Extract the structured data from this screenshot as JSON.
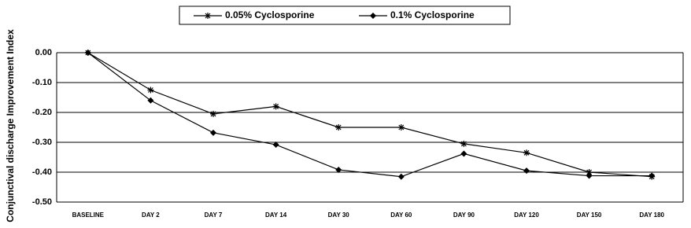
{
  "chart_data": {
    "type": "line",
    "y_label": "Conjunctival discharge Improvement Index",
    "categories": [
      "BASELINE",
      "DAY 2",
      "DAY 7",
      "DAY 14",
      "DAY 30",
      "DAY 60",
      "DAY 90",
      "DAY 120",
      "DAY 150",
      "DAY 180"
    ],
    "series": [
      {
        "name": "0.05%  Cyclosporine",
        "color": "#000000",
        "marker": "asterisk",
        "values": [
          0,
          -0.125,
          -0.205,
          -0.18,
          -0.25,
          -0.25,
          -0.305,
          -0.335,
          -0.4,
          -0.415
        ]
      },
      {
        "name": "0.1% Cyclosporine",
        "color": "#000000",
        "marker": "diamond",
        "values": [
          0,
          -0.16,
          -0.268,
          -0.308,
          -0.392,
          -0.415,
          -0.338,
          -0.395,
          -0.412,
          -0.412
        ]
      }
    ],
    "ylim": [
      -0.5,
      0
    ],
    "yticks": [
      {
        "value": 0,
        "label": "0.00"
      },
      {
        "value": -0.1,
        "label": "-0.10"
      },
      {
        "value": -0.2,
        "label": "-0.20"
      },
      {
        "value": -0.3,
        "label": "-0.30"
      },
      {
        "value": -0.4,
        "label": "-0.40"
      },
      {
        "value": -0.5,
        "label": "-0.50"
      }
    ],
    "grid": true
  }
}
